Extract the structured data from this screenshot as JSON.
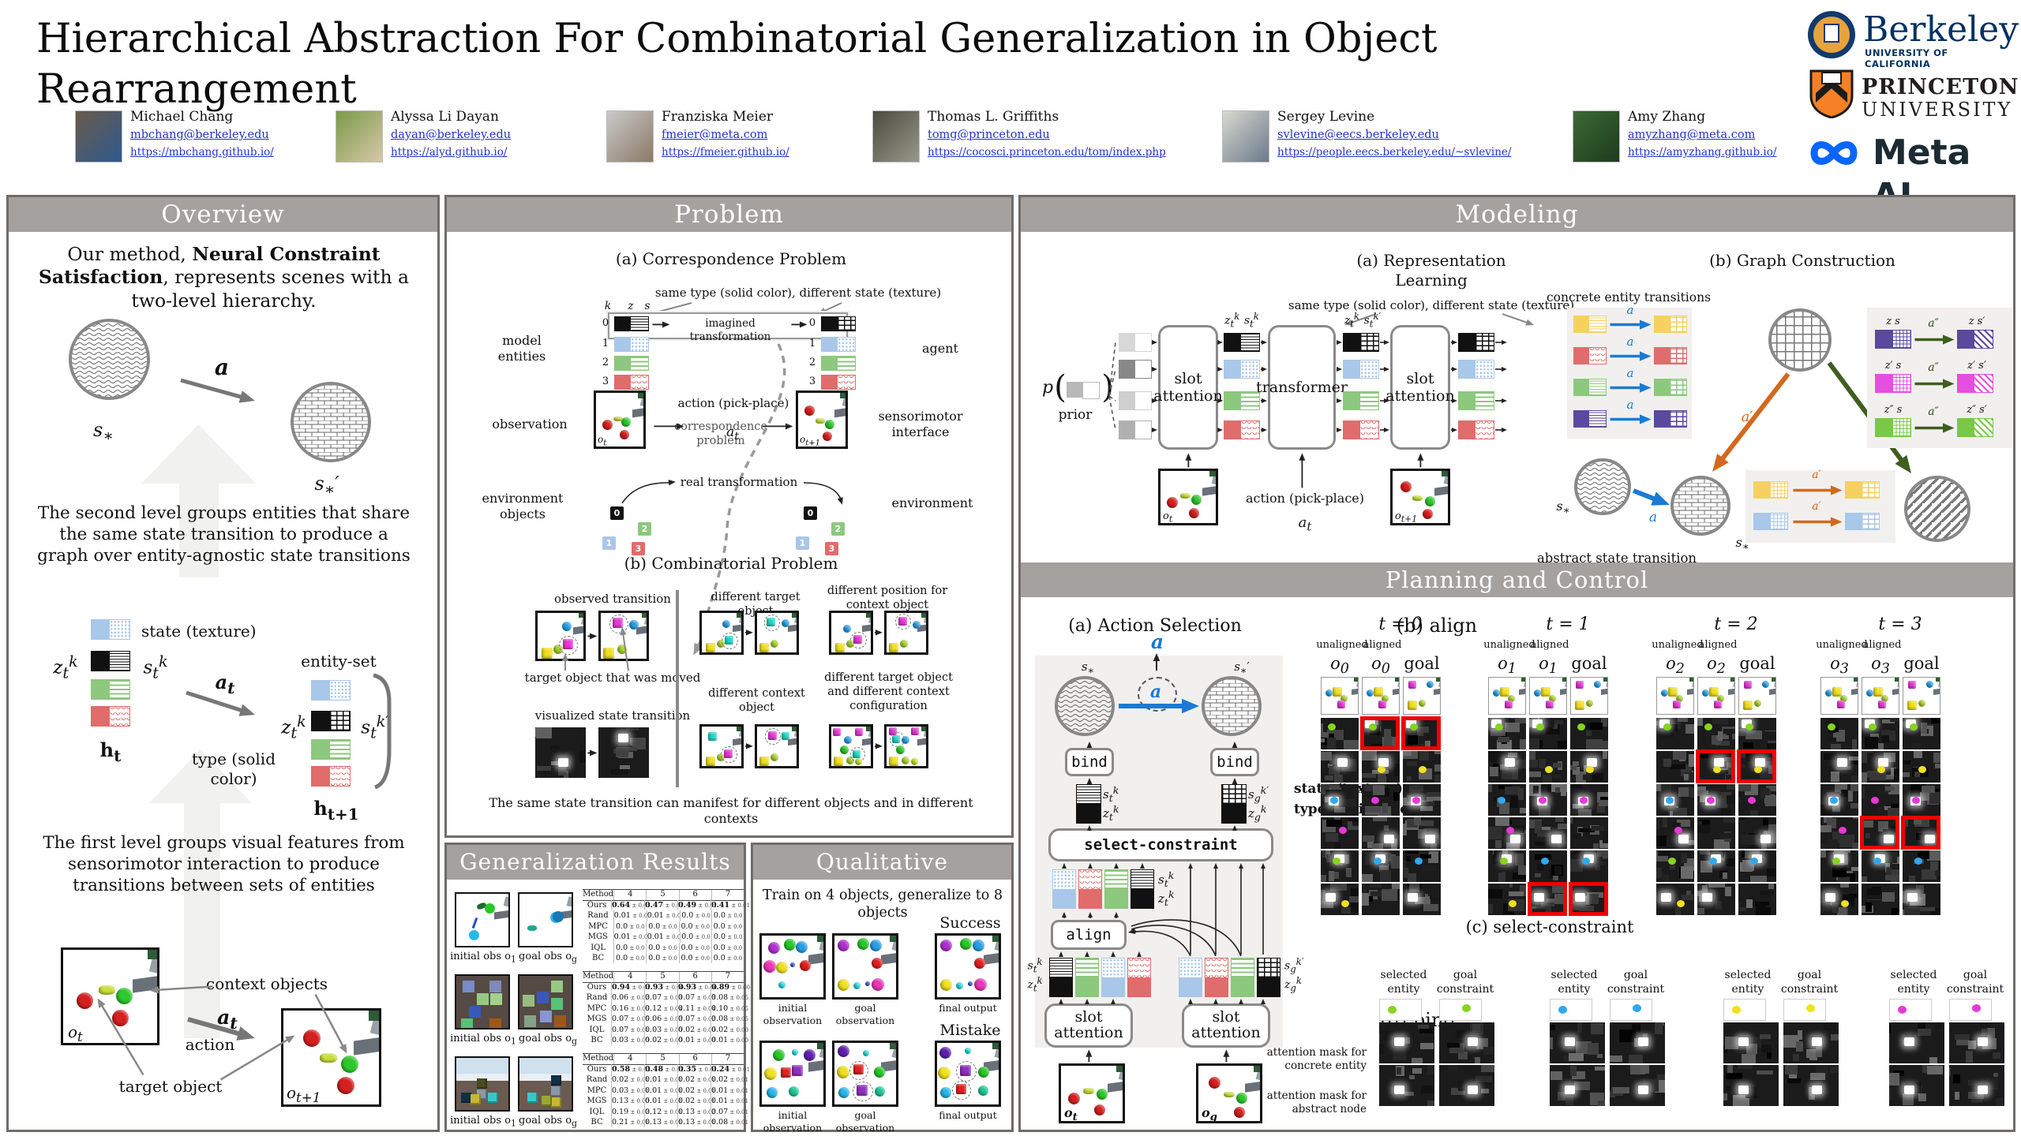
{
  "title": "Hierarchical Abstraction For Combinatorial Generalization in Object Rearrangement",
  "logos": {
    "berkeley": "Berkeley",
    "berkeley_sub": "UNIVERSITY OF CALIFORNIA",
    "princeton_line1": "PRINCETON",
    "princeton_line2": "UNIVERSITY",
    "meta": "Meta AI"
  },
  "authors": [
    {
      "name": "Michael Chang",
      "email": "mbchang@berkeley.edu",
      "url": "https://mbchang.github.io/"
    },
    {
      "name": "Alyssa Li Dayan",
      "email": "dayan@berkeley.edu",
      "url": "https://alyd.github.io/"
    },
    {
      "name": "Franziska Meier",
      "email": "fmeier@meta.com",
      "url": "https://fmeier.github.io/"
    },
    {
      "name": "Thomas L. Griffiths",
      "email": "tomg@princeton.edu",
      "url": "https://cocosci.princeton.edu/tom/index.php"
    },
    {
      "name": "Sergey Levine",
      "email": "svlevine@eecs.berkeley.edu",
      "url": "https://people.eecs.berkeley.edu/~svlevine/"
    },
    {
      "name": "Amy Zhang",
      "email": "amyzhang@meta.com",
      "url": "https://amyzhang.github.io/"
    }
  ],
  "overview": {
    "header": "Overview",
    "intro_pre": "Our method, ",
    "intro_bold": "Neural Constraint Satisfaction",
    "intro_post": ", represents scenes with a two-level hierarchy.",
    "s_star_h": "s<sub>∗</sub>",
    "a_h": "a",
    "s_star_prime_h": "s<sub>∗</sub>′",
    "level2": "The second level groups entities that share the same state transition to produce a graph over entity-agnostic state transitions",
    "state_label": "state (texture)",
    "type_label": "type (solid color)",
    "entity_set": "entity-set",
    "z_t_k_h": "z<sub>t</sub><sup>k</sup>",
    "s_t_k_h": "s<sub>t</sub><sup>k</sup>",
    "s_t_kp_h": "s<sub>t</sub><sup>k′</sup>",
    "h_t_h": "h<sub>t</sub>",
    "h_t1_h": "h<sub>t+1</sub>",
    "a_t_h": "a<sub>t</sub>",
    "level1": "The first level groups visual features from sensorimotor interaction to produce transitions between sets of entities",
    "context_objects": "context objects",
    "target_object": "target object",
    "action_word": "action",
    "o_t_h": "o<sub>t</sub>",
    "o_t1_h": "o<sub>t+1</sub>"
  },
  "problem": {
    "header": "Problem",
    "a_title": "(a) Correspondence Problem",
    "same_type": "same type (solid color), different state (texture)",
    "k": "k",
    "z": "z",
    "s": "s",
    "indices": [
      "0",
      "1",
      "2",
      "3"
    ],
    "imagined": "imagined transformation",
    "correspondence": "correspondence problem",
    "model_entities": "model entities",
    "agent": "agent",
    "observation": "observation",
    "action_pp": "action (pick-place)",
    "a_t_h": "a<sub>t</sub>",
    "o_t_h": "o<sub>t</sub>",
    "o_t1_h": "o<sub>t+1</sub>",
    "sensorimotor": "sensorimotor interface",
    "real": "real transformation",
    "env_objects": "environment objects",
    "environment": "environment",
    "b_title": "(b) Combinatorial Problem",
    "observed_transition": "observed transition",
    "target_moved": "target object that was moved",
    "visualized": "visualized state transition",
    "diff_target": "different target object",
    "diff_position": "different position for context object",
    "diff_context": "different context object",
    "diff_both": "different target object and different context configuration",
    "caption": "The same state transition can manifest for different objects and in different contexts"
  },
  "generalization": {
    "header": "Generalization Results",
    "initial_label_h": "initial obs o<sub>1</sub>",
    "goal_label_h": "goal obs o<sub>g</sub>",
    "tables": [
      {
        "headers": [
          "Method",
          "4",
          "5",
          "6",
          "7"
        ],
        "rows": [
          {
            "method": "Ours",
            "bold": true,
            "values": [
              "0.64 ± 0.01",
              "0.47 ± 0.01",
              "0.49 ± 0.01",
              "0.41 ± 0.01"
            ]
          },
          {
            "method": "Rand",
            "bold": false,
            "values": [
              "0.01 ± 0.0",
              "0.01 ± 0.0",
              "0.0 ± 0.0",
              "0.0 ± 0.0"
            ]
          },
          {
            "method": "MPC",
            "bold": false,
            "values": [
              "0.0 ± 0.0",
              "0.0 ± 0.0",
              "0.0 ± 0.0",
              "0.0 ± 0.0"
            ]
          },
          {
            "method": "MGS",
            "bold": false,
            "values": [
              "0.01 ± 0.0",
              "0.01 ± 0.0",
              "0.0 ± 0.0",
              "0.0 ± 0.0"
            ]
          },
          {
            "method": "IQL",
            "bold": false,
            "values": [
              "0.0 ± 0.0",
              "0.0 ± 0.0",
              "0.0 ± 0.0",
              "0.0 ± 0.0"
            ]
          },
          {
            "method": "BC",
            "bold": false,
            "values": [
              "0.0 ± 0.0",
              "0.0 ± 0.0",
              "0.0 ± 0.0",
              "0.0 ± 0.0"
            ]
          }
        ]
      },
      {
        "headers": [
          "Method",
          "4",
          "5",
          "6",
          "7"
        ],
        "rows": [
          {
            "method": "Ours",
            "bold": true,
            "values": [
              "0.94 ± 0.01",
              "0.93 ± 0.00",
              "0.93 ± 0.00",
              "0.89 ± 0.00"
            ]
          },
          {
            "method": "Rand",
            "bold": false,
            "values": [
              "0.06 ± 0.02",
              "0.07 ± 0.03",
              "0.07 ± 0.03",
              "0.08 ± 0.05"
            ]
          },
          {
            "method": "MPC",
            "bold": false,
            "values": [
              "0.16 ± 0.06",
              "0.12 ± 0.04",
              "0.11 ± 0.04",
              "0.10 ± 0.05"
            ]
          },
          {
            "method": "MGS",
            "bold": false,
            "values": [
              "0.07 ± 0.05",
              "0.06 ± 0.02",
              "0.07 ± 0.02",
              "0.08 ± 0.05"
            ]
          },
          {
            "method": "IQL",
            "bold": false,
            "values": [
              "0.07 ± 0.01",
              "0.03 ± 0.00",
              "0.02 ± 0.00",
              "0.02 ± 0.00"
            ]
          },
          {
            "method": "BC",
            "bold": false,
            "values": [
              "0.03 ± 0.00",
              "0.02 ± 0.00",
              "0.01 ± 0.00",
              "0.01 ± 0.00"
            ]
          }
        ]
      },
      {
        "headers": [
          "Method",
          "4",
          "5",
          "6",
          "7"
        ],
        "rows": [
          {
            "method": "Ours",
            "bold": true,
            "values": [
              "0.58 ± 0.02",
              "0.48 ± 0.02",
              "0.35 ± 0.01",
              "0.24 ± 0.01"
            ]
          },
          {
            "method": "Rand",
            "bold": false,
            "values": [
              "0.02 ± 0.01",
              "0.01 ± 0.01",
              "0.02 ± 0.01",
              "0.02 ± 0.01"
            ]
          },
          {
            "method": "MPC",
            "bold": false,
            "values": [
              "0.03 ± 0.01",
              "0.01 ± 0.01",
              "0.02 ± 0.01",
              "0.01 ± 0.01"
            ]
          },
          {
            "method": "MGS",
            "bold": false,
            "values": [
              "0.13 ± 0.00",
              "0.01 ± 0.01",
              "0.02 ± 0.01",
              "0.01 ± 0.01"
            ]
          },
          {
            "method": "IQL",
            "bold": false,
            "values": [
              "0.19 ± 0.02",
              "0.12 ± 0.01",
              "0.13 ± 0.02",
              "0.07 ± 0.01"
            ]
          },
          {
            "method": "BC",
            "bold": false,
            "values": [
              "0.21 ± 0.01",
              "0.13 ± 0.01",
              "0.13 ± 0.01",
              "0.08 ± 0.01"
            ]
          }
        ]
      }
    ]
  },
  "qualitative": {
    "header": "Qualitative",
    "subtitle": "Train on 4 objects, generalize to 8 objects",
    "success": "Success",
    "mistake": "Mistake",
    "initial_observation": "initial observation",
    "goal_observation": "goal observation",
    "final_output": "final output"
  },
  "modeling": {
    "header": "Modeling",
    "a_title": "(a) Representation Learning",
    "same_type": "same type (solid color), different state (texture)",
    "p": "p",
    "prior": "prior",
    "slot_attention": "slot attention",
    "transformer": "transformer",
    "z_s_h": "z<sub>t</sub><sup>k</sup>&#8239;&#8239;s<sub>t</sub><sup>k</sup>",
    "z_sp_h": "z<sub>t</sub><sup>k</sup>&#8239;&#8239;s<sub>t</sub><sup>k′</sup>",
    "o_t_h": "o<sub>t</sub>",
    "o_t1_h": "o<sub>t+1</sub>",
    "action_pp": "action (pick-place)",
    "a_t_h": "a<sub>t</sub>",
    "b_title": "(b) Graph Construction",
    "concrete": "concrete entity transitions",
    "abstract": "abstract state transition",
    "a_h": "a",
    "ap_h": "a′",
    "app_h": "a″",
    "s_star_h": "s<sub>∗</sub>",
    "s_star_prime_h": "s<sub>∗</sub>′",
    "zs_headers": [
      [
        "z s",
        "z s′"
      ],
      [
        "z′ s",
        "z′ s′"
      ],
      [
        "z″ s",
        "z″ s′"
      ]
    ]
  },
  "planning": {
    "header": "Planning and Control",
    "a_title": "(a) Action Selection",
    "a_h": "a",
    "s_star_h": "s<sub>∗</sub>",
    "s_star_prime_h": "s<sub>∗</sub>′",
    "bind": "bind",
    "align": "align",
    "select_constraint": "select-constraint",
    "slot_attention": "slot attention",
    "s_t_k_h": "s<sub>t</sub><sup>k</sup>",
    "z_t_k_h": "z<sub>t</sub><sup>k</sup>",
    "s_g_kp_h": "s<sub>g</sub><sup>k′</sup>",
    "z_g_k_h": "z<sub>g</sub><sup>k</sup>",
    "state_label": "state (texture)",
    "type_label": "type (solid color)",
    "o_t_h": "o<sub>t</sub>",
    "o_g_h": "o<sub>g</sub>",
    "b_title": "(b) align",
    "c_title": "(c) select-constraint",
    "d_title": "(d) bind",
    "unaligned": "unaligned",
    "aligned": "aligned",
    "goal": "goal",
    "align_groups": [
      {
        "time_h": "t = 0",
        "obs_h": "o<sub>0</sub>",
        "red_row": 0
      },
      {
        "time_h": "t = 1",
        "obs_h": "o<sub>1</sub>",
        "red_row": 5
      },
      {
        "time_h": "t = 2",
        "obs_h": "o<sub>2</sub>",
        "red_row": 1
      },
      {
        "time_h": "t = 3",
        "obs_h": "o<sub>3</sub>",
        "red_row": 3
      }
    ],
    "selected_entity": "selected entity",
    "goal_constraint": "goal constraint",
    "mask_concrete": "attention mask for concrete entity",
    "mask_abstract": "attention mask for abstract node"
  },
  "colors": {
    "accent_blue": "#1a7ad4",
    "accent_orange": "#d2691e",
    "accent_dark_green": "#3f5e1f",
    "entity_blue": "#a9c7e8",
    "entity_green": "#8cc87d",
    "entity_red": "#e06c6c",
    "entity_yellow": "#f6d160",
    "entity_purple": "#584a9e",
    "entity_magenta": "#e44fe0",
    "entity_black": "#111111",
    "highlight_red": "#ee0000",
    "link_blue": "#2433c8",
    "header_gray": "#a5a19e"
  }
}
